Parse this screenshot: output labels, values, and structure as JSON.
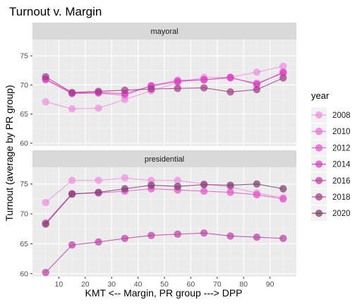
{
  "chart_data": {
    "type": "line",
    "title": "Turnout v. Margin",
    "xlabel": "KMT <-- Margin, PR group ---> DPP",
    "ylabel": "Turnout (average by PR group)",
    "x": [
      5,
      15,
      25,
      35,
      45,
      55,
      65,
      75,
      85,
      95
    ],
    "x_ticks": [
      10,
      20,
      30,
      40,
      50,
      60,
      70,
      80,
      90
    ],
    "xlim": [
      0,
      100
    ],
    "legend": {
      "title": "year",
      "position": "right"
    },
    "colors": {
      "2008": "#ee8fe0",
      "2010": "#ea6dd6",
      "2012": "#e553cc",
      "2014": "#db3cc0",
      "2016": "#bf3fa6",
      "2018": "#a23a88",
      "2020": "#7f3d6e"
    },
    "panels": [
      {
        "label": "mayoral",
        "ylim": [
          59.5,
          77.8
        ],
        "y_ticks": [
          60,
          65,
          70,
          75
        ],
        "series": [
          {
            "name": "2008",
            "values": [
              67.1,
              65.9,
              66.0,
              67.5,
              69.0,
              70.4,
              71.3,
              71.3,
              72.2,
              73.2
            ]
          },
          {
            "name": "2010",
            "values": [
              70.9,
              68.5,
              68.6,
              68.2,
              69.9,
              70.8,
              70.9,
              71.2,
              70.3,
              72.0
            ]
          },
          {
            "name": "2014",
            "values": [
              71.0,
              68.6,
              68.7,
              68.5,
              69.8,
              70.6,
              70.9,
              71.3,
              70.1,
              72.2
            ]
          },
          {
            "name": "2018",
            "values": [
              71.4,
              68.7,
              68.9,
              69.1,
              69.3,
              69.4,
              69.5,
              68.8,
              69.2,
              71.2
            ]
          }
        ]
      },
      {
        "label": "presidential",
        "ylim": [
          59.5,
          77.8
        ],
        "y_ticks": [
          60,
          65,
          70,
          75
        ],
        "series": [
          {
            "name": "2008",
            "values": [
              71.9,
              75.6,
              75.6,
              76.0,
              75.6,
              75.6,
              75.0,
              74.5,
              73.5,
              72.7
            ]
          },
          {
            "name": "2012",
            "values": [
              68.5,
              73.4,
              73.5,
              73.8,
              74.2,
              74.0,
              73.8,
              73.6,
              73.2,
              72.5
            ]
          },
          {
            "name": "2016",
            "values": [
              60.2,
              64.8,
              65.3,
              65.9,
              66.4,
              66.6,
              66.8,
              66.3,
              66.1,
              65.9
            ]
          },
          {
            "name": "2020",
            "values": [
              68.3,
              73.3,
              73.6,
              74.2,
              74.8,
              74.6,
              74.9,
              74.8,
              75.0,
              74.2
            ]
          }
        ]
      }
    ],
    "legend_items": [
      "2008",
      "2010",
      "2012",
      "2014",
      "2016",
      "2018",
      "2020"
    ]
  }
}
